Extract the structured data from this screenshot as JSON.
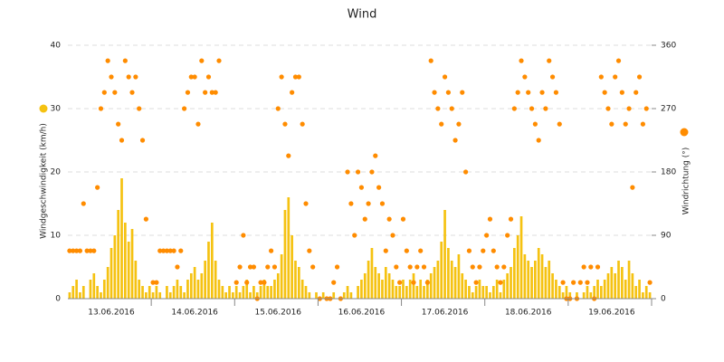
{
  "chart_data": {
    "type": "combo",
    "title": "Wind",
    "categories": [
      null,
      null,
      null,
      null,
      null,
      null,
      null,
      null,
      null,
      null,
      null,
      null,
      "13.06.2016",
      null,
      null,
      null,
      null,
      null,
      null,
      null,
      null,
      null,
      null,
      null,
      null,
      null,
      null,
      null,
      null,
      null,
      null,
      null,
      null,
      null,
      null,
      null,
      "14.06.2016",
      null,
      null,
      null,
      null,
      null,
      null,
      null,
      null,
      null,
      null,
      null,
      null,
      null,
      null,
      null,
      null,
      null,
      null,
      null,
      null,
      null,
      null,
      null,
      "15.06.2016",
      null,
      null,
      null,
      null,
      null,
      null,
      null,
      null,
      null,
      null,
      null,
      null,
      null,
      null,
      null,
      null,
      null,
      null,
      null,
      null,
      null,
      null,
      null,
      "16.06.2016",
      null,
      null,
      null,
      null,
      null,
      null,
      null,
      null,
      null,
      null,
      null,
      null,
      null,
      null,
      null,
      null,
      null,
      null,
      null,
      null,
      null,
      null,
      null,
      "17.06.2016",
      null,
      null,
      null,
      null,
      null,
      null,
      null,
      null,
      null,
      null,
      null,
      null,
      null,
      null,
      null,
      null,
      null,
      null,
      null,
      null,
      null,
      null,
      null,
      "18.06.2016",
      null,
      null,
      null,
      null,
      null,
      null,
      null,
      null,
      null,
      null,
      null,
      null,
      null,
      null,
      null,
      null,
      null,
      null,
      null,
      null,
      null,
      null,
      null,
      "19.06.2016",
      null,
      null,
      null,
      null,
      null,
      null,
      null,
      null,
      null,
      null,
      null
    ],
    "series": [
      {
        "name": "Windgeschwindigkeit (km/h)",
        "type": "bar",
        "color": "#f5c211",
        "axis": "y",
        "values": [
          1,
          2,
          3,
          1,
          2,
          0,
          3,
          4,
          2,
          1,
          3,
          5,
          8,
          10,
          14,
          19,
          12,
          9,
          11,
          6,
          3,
          2,
          1,
          2,
          1,
          2,
          1,
          0,
          2,
          1,
          2,
          3,
          2,
          1,
          3,
          4,
          5,
          3,
          4,
          6,
          9,
          12,
          6,
          3,
          2,
          1,
          2,
          1,
          2,
          1,
          2,
          3,
          1,
          2,
          1,
          2,
          3,
          2,
          2,
          3,
          4,
          7,
          14,
          16,
          10,
          6,
          5,
          3,
          2,
          1,
          0,
          1,
          0,
          1,
          0,
          0,
          1,
          0,
          0,
          1,
          2,
          1,
          0,
          2,
          3,
          4,
          6,
          8,
          5,
          4,
          3,
          5,
          4,
          3,
          2,
          2,
          3,
          2,
          3,
          4,
          2,
          3,
          2,
          3,
          4,
          5,
          6,
          9,
          14,
          8,
          6,
          5,
          7,
          4,
          3,
          2,
          1,
          2,
          3,
          2,
          2,
          1,
          2,
          3,
          1,
          3,
          4,
          5,
          8,
          10,
          13,
          7,
          6,
          5,
          6,
          8,
          7,
          5,
          6,
          4,
          3,
          2,
          1,
          2,
          1,
          0,
          1,
          0,
          1,
          2,
          1,
          2,
          3,
          2,
          3,
          4,
          5,
          4,
          6,
          5,
          3,
          6,
          4,
          2,
          3,
          1,
          2,
          1
        ]
      },
      {
        "name": "Windrichtung (°)",
        "type": "scatter",
        "color": "#ff8c00",
        "axis": "y2",
        "values": [
          68,
          68,
          68,
          68,
          135,
          68,
          68,
          68,
          158,
          270,
          293,
          338,
          315,
          293,
          248,
          225,
          338,
          315,
          293,
          315,
          270,
          225,
          113,
          null,
          23,
          23,
          68,
          68,
          68,
          68,
          68,
          45,
          68,
          270,
          293,
          315,
          315,
          248,
          338,
          293,
          315,
          293,
          293,
          338,
          null,
          null,
          null,
          null,
          23,
          45,
          90,
          23,
          45,
          45,
          0,
          23,
          23,
          45,
          68,
          45,
          270,
          315,
          248,
          203,
          293,
          315,
          315,
          248,
          135,
          68,
          45,
          null,
          0,
          null,
          0,
          0,
          23,
          45,
          0,
          null,
          180,
          135,
          90,
          180,
          158,
          113,
          135,
          180,
          203,
          158,
          135,
          68,
          113,
          90,
          45,
          23,
          113,
          68,
          45,
          23,
          45,
          68,
          45,
          23,
          338,
          293,
          270,
          248,
          315,
          293,
          270,
          225,
          248,
          293,
          180,
          68,
          45,
          23,
          45,
          68,
          90,
          113,
          68,
          45,
          23,
          45,
          90,
          113,
          270,
          293,
          338,
          315,
          293,
          270,
          248,
          225,
          293,
          270,
          338,
          315,
          293,
          248,
          23,
          0,
          0,
          23,
          0,
          23,
          45,
          23,
          45,
          0,
          45,
          315,
          293,
          270,
          248,
          315,
          338,
          293,
          248,
          270,
          158,
          293,
          315,
          248,
          270,
          23
        ]
      }
    ],
    "ylim": [
      0,
      40
    ],
    "yticks": [
      0,
      10,
      20,
      30,
      40
    ],
    "y2lim": [
      0,
      360
    ],
    "y2ticks": [
      0,
      90,
      180,
      270,
      360
    ],
    "grid": true
  }
}
